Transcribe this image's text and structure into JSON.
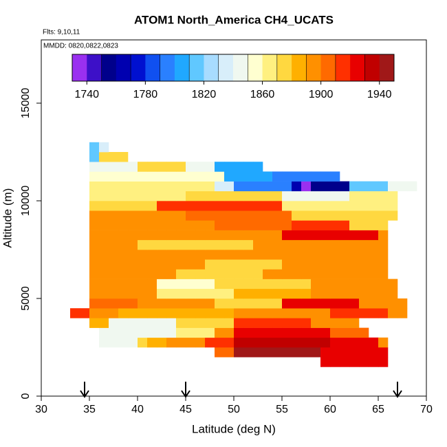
{
  "chart_data": {
    "type": "heatmap",
    "title": "ATOM1 North_America CH4_UCATS",
    "subtitle": "Flts: 9,10,11",
    "annotation": "MMDD: 0820,0822,0823",
    "xlabel": "Latitude (deg N)",
    "ylabel": "Altitude (m)",
    "xlim": [
      30,
      70
    ],
    "xticks": [
      30,
      35,
      40,
      45,
      50,
      55,
      60,
      65,
      70
    ],
    "ylim": [
      0,
      18240
    ],
    "yticks": [
      0,
      5000,
      10000,
      15000
    ],
    "zlim": [
      1730,
      1950
    ],
    "zticks": [
      1740,
      1780,
      1820,
      1860,
      1900,
      1940
    ],
    "colors": [
      "#9a30f0",
      "#3d10c8",
      "#00008b",
      "#0000b0",
      "#0010d0",
      "#1050f0",
      "#2a80ff",
      "#20a8ff",
      "#60c8ff",
      "#a8dcff",
      "#d8eefa",
      "#f0f8f0",
      "#ffffd0",
      "#fff080",
      "#ffd840",
      "#ffb000",
      "#ff9000",
      "#ff6a00",
      "#ff3000",
      "#e80000",
      "#c00000",
      "#a01818"
    ],
    "dlat": 1,
    "dalt": 500,
    "arrows": [
      34.5,
      45,
      67
    ],
    "rows": [
      {
        "alt": 1500,
        "lat0": 59,
        "values": [
          1920,
          1920,
          1920,
          1920,
          1920,
          1920,
          1920
        ]
      },
      {
        "alt": 2000,
        "lat0": 48,
        "values": [
          1905,
          1905,
          1945,
          1945,
          1945,
          1945,
          1945,
          1945,
          1945,
          1945,
          1945,
          1925,
          1925,
          1925,
          1925,
          1925,
          1925,
          1925
        ]
      },
      {
        "alt": 2500,
        "lat0": 36,
        "values": [
          1845,
          1845,
          1845,
          1845,
          1875,
          1880,
          1885,
          1890,
          1895,
          1895,
          1895,
          1915,
          1915,
          1915,
          1935,
          1935,
          1935,
          1935,
          1935,
          1935,
          1935,
          1935,
          1935,
          1935,
          1925,
          1925,
          1925,
          1925,
          1925,
          1895
        ]
      },
      {
        "alt": 3000,
        "lat0": 36,
        "values": [
          1840,
          1840,
          1840,
          1840,
          1840,
          1840,
          1840,
          1840,
          1865,
          1865,
          1865,
          1865,
          1890,
          1890,
          1925,
          1925,
          1925,
          1925,
          1925,
          1925,
          1925,
          1925,
          1925,
          1925,
          1900,
          1900,
          1900,
          1900
        ]
      },
      {
        "alt": 3500,
        "lat0": 35,
        "values": [
          1885,
          1885,
          1845,
          1845,
          1845,
          1845,
          1845,
          1845,
          1845,
          1870,
          1870,
          1870,
          1870,
          1870,
          1870,
          1915,
          1915,
          1915,
          1915,
          1915,
          1915,
          1915,
          1915,
          1895,
          1895,
          1895,
          1895,
          1895
        ]
      },
      {
        "alt": 4000,
        "lat0": 33,
        "values": [
          1915,
          1915,
          1890,
          1890,
          1890,
          1885,
          1885,
          1885,
          1885,
          1885,
          1885,
          1885,
          1885,
          1885,
          1885,
          1885,
          1885,
          1895,
          1895,
          1895,
          1895,
          1895,
          1895,
          1895,
          1895,
          1895,
          1895,
          1915,
          1915,
          1915,
          1915,
          1915,
          1915,
          1890,
          1890
        ]
      },
      {
        "alt": 4500,
        "lat0": 35,
        "values": [
          1905,
          1905,
          1905,
          1905,
          1905,
          1890,
          1890,
          1890,
          1890,
          1890,
          1890,
          1890,
          1890,
          1875,
          1875,
          1875,
          1875,
          1875,
          1875,
          1875,
          1920,
          1920,
          1920,
          1920,
          1920,
          1920,
          1920,
          1920,
          1895,
          1895,
          1895,
          1895,
          1895
        ]
      },
      {
        "alt": 5000,
        "lat0": 35,
        "values": [
          1895,
          1895,
          1895,
          1895,
          1895,
          1895,
          1895,
          1865,
          1865,
          1865,
          1865,
          1865,
          1865,
          1865,
          1865,
          1885,
          1885,
          1885,
          1885,
          1885,
          1885,
          1885,
          1885,
          1895,
          1895,
          1895,
          1895,
          1895,
          1895,
          1895,
          1895,
          1895
        ]
      },
      {
        "alt": 5500,
        "lat0": 35,
        "values": [
          1890,
          1890,
          1890,
          1890,
          1890,
          1890,
          1890,
          1850,
          1850,
          1850,
          1850,
          1850,
          1850,
          1870,
          1870,
          1870,
          1870,
          1870,
          1870,
          1870,
          1870,
          1870,
          1870,
          1890,
          1890,
          1890,
          1890,
          1890,
          1890,
          1890,
          1890,
          1890
        ]
      },
      {
        "alt": 6000,
        "lat0": 35,
        "values": [
          1890,
          1890,
          1890,
          1890,
          1890,
          1890,
          1890,
          1890,
          1890,
          1870,
          1870,
          1870,
          1870,
          1870,
          1870,
          1870,
          1870,
          1870,
          1890,
          1890,
          1890,
          1890,
          1890,
          1890,
          1890,
          1890,
          1890,
          1890,
          1890,
          1890,
          1890
        ]
      },
      {
        "alt": 6500,
        "lat0": 35,
        "values": [
          1895,
          1895,
          1895,
          1895,
          1895,
          1895,
          1895,
          1895,
          1895,
          1895,
          1895,
          1895,
          1875,
          1875,
          1875,
          1875,
          1875,
          1875,
          1875,
          1875,
          1895,
          1895,
          1895,
          1895,
          1895,
          1895,
          1895,
          1895,
          1895,
          1895,
          1895
        ]
      },
      {
        "alt": 7000,
        "lat0": 35,
        "values": [
          1890,
          1890,
          1890,
          1890,
          1890,
          1890,
          1890,
          1890,
          1890,
          1890,
          1890,
          1890,
          1890,
          1890,
          1890,
          1890,
          1890,
          1890,
          1890,
          1890,
          1890,
          1890,
          1890,
          1890,
          1890,
          1890,
          1890,
          1890,
          1890,
          1890,
          1890
        ]
      },
      {
        "alt": 7500,
        "lat0": 35,
        "values": [
          1890,
          1890,
          1890,
          1890,
          1890,
          1875,
          1875,
          1875,
          1875,
          1875,
          1875,
          1875,
          1875,
          1875,
          1875,
          1875,
          1875,
          1895,
          1895,
          1895,
          1895,
          1895,
          1895,
          1895,
          1895,
          1895,
          1895,
          1895,
          1895,
          1895,
          1895
        ]
      },
      {
        "alt": 8000,
        "lat0": 35,
        "values": [
          1890,
          1890,
          1890,
          1890,
          1890,
          1890,
          1890,
          1890,
          1890,
          1890,
          1890,
          1890,
          1890,
          1890,
          1890,
          1890,
          1890,
          1890,
          1890,
          1890,
          1920,
          1920,
          1920,
          1920,
          1920,
          1920,
          1920,
          1920,
          1920,
          1920,
          1890
        ]
      },
      {
        "alt": 8500,
        "lat0": 35,
        "values": [
          1895,
          1895,
          1895,
          1895,
          1895,
          1895,
          1895,
          1895,
          1895,
          1895,
          1895,
          1895,
          1895,
          1900,
          1900,
          1900,
          1900,
          1900,
          1900,
          1900,
          1900,
          1915,
          1915,
          1915,
          1915,
          1915,
          1915,
          1875,
          1875,
          1875,
          1875
        ]
      },
      {
        "alt": 9000,
        "lat0": 35,
        "values": [
          1890,
          1890,
          1890,
          1890,
          1890,
          1890,
          1890,
          1890,
          1890,
          1890,
          1900,
          1900,
          1900,
          1900,
          1900,
          1900,
          1900,
          1900,
          1900,
          1900,
          1900,
          1870,
          1870,
          1870,
          1870,
          1870,
          1870,
          1870,
          1870,
          1870,
          1870,
          1870
        ]
      },
      {
        "alt": 9500,
        "lat0": 35,
        "values": [
          1875,
          1875,
          1875,
          1875,
          1875,
          1875,
          1875,
          1910,
          1910,
          1910,
          1910,
          1910,
          1910,
          1910,
          1910,
          1910,
          1910,
          1910,
          1910,
          1910,
          1865,
          1865,
          1865,
          1865,
          1865,
          1865,
          1865,
          1865,
          1865,
          1865,
          1865,
          1865
        ]
      },
      {
        "alt": 10000,
        "lat0": 35,
        "values": [
          1865,
          1865,
          1865,
          1865,
          1865,
          1865,
          1865,
          1865,
          1865,
          1865,
          1870,
          1870,
          1870,
          1870,
          1870,
          1870,
          1870,
          1870,
          1870,
          1870,
          1845,
          1845,
          1845,
          1845,
          1845,
          1845,
          1845,
          1865,
          1865,
          1865,
          1865,
          1865
        ]
      },
      {
        "alt": 10500,
        "lat0": 35,
        "values": [
          1860,
          1860,
          1860,
          1860,
          1860,
          1860,
          1860,
          1860,
          1860,
          1860,
          1860,
          1860,
          1860,
          1830,
          1830,
          1790,
          1790,
          1790,
          1790,
          1790,
          1790,
          1760,
          1735,
          1755,
          1755,
          1755,
          1755,
          1810,
          1810,
          1810,
          1810,
          1840,
          1840,
          1840
        ]
      },
      {
        "alt": 11000,
        "lat0": 35,
        "values": [
          1850,
          1850,
          1850,
          1850,
          1850,
          1850,
          1850,
          1850,
          1850,
          1850,
          1850,
          1850,
          1850,
          1850,
          1805,
          1805,
          1805,
          1805,
          1805,
          1790,
          1790,
          1790,
          1790,
          1790,
          1790,
          1790
        ]
      },
      {
        "alt": 11500,
        "lat0": 35,
        "values": [
          1845,
          1845,
          1845,
          1845,
          1845,
          1870,
          1870,
          1870,
          1870,
          1870,
          1840,
          1840,
          1840,
          1805,
          1805,
          1805,
          1805,
          1805
        ]
      },
      {
        "alt": 12000,
        "lat0": 35,
        "values": [
          1815,
          1870,
          1870,
          1870
        ]
      },
      {
        "alt": 12500,
        "lat0": 35,
        "values": [
          1815,
          1830
        ]
      }
    ]
  }
}
